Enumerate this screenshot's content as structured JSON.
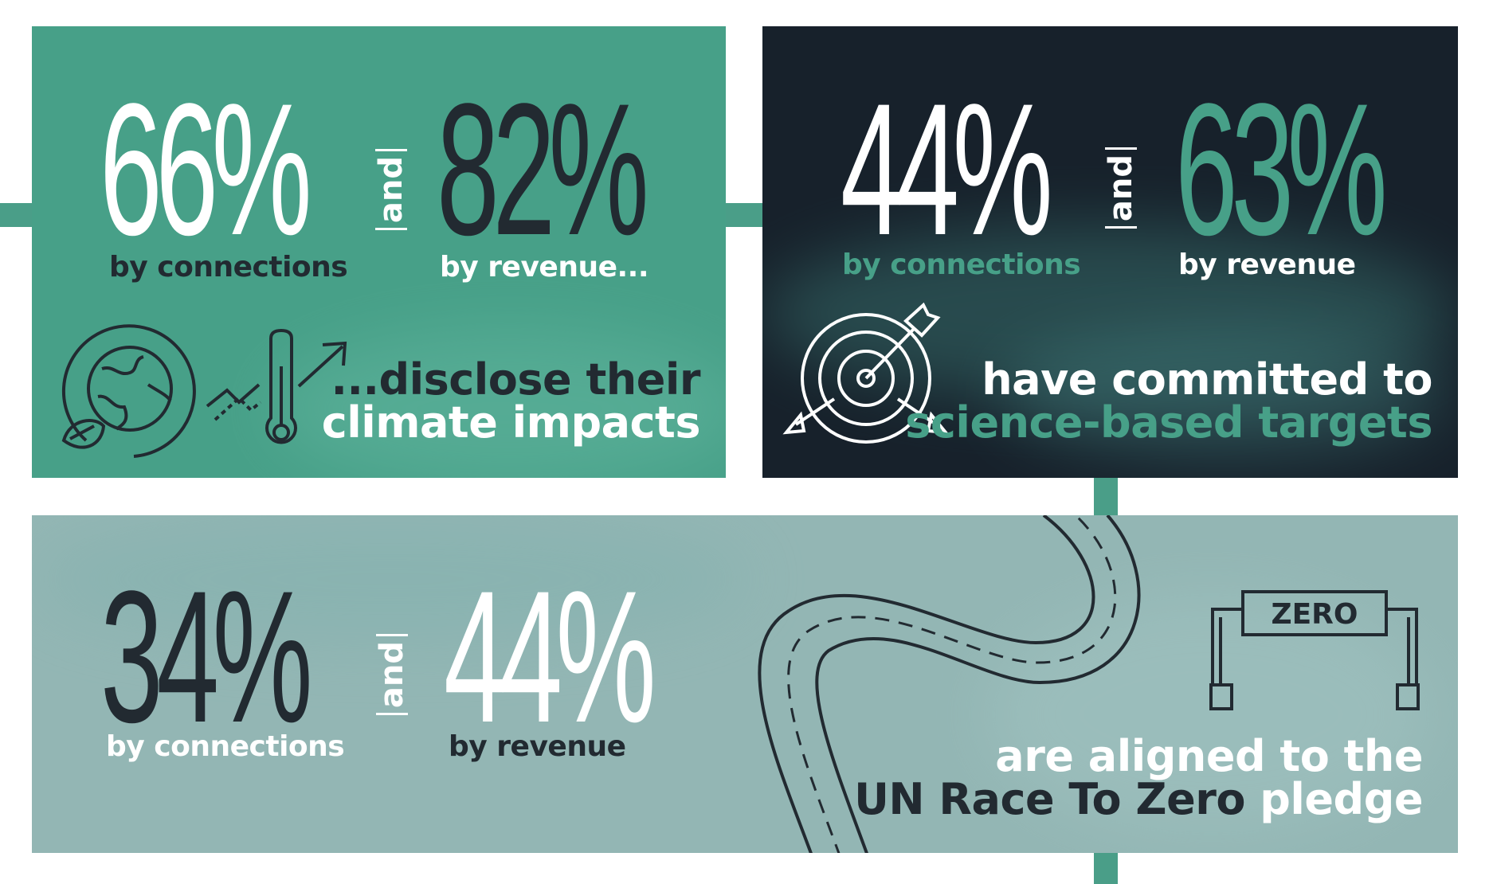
{
  "panel1": {
    "stat1_value": "66%",
    "stat1_label": "by connections",
    "joiner": "and",
    "stat2_value": "82%",
    "stat2_label": "by revenue...",
    "headline_line1": "...disclose their",
    "headline_line2": "climate impacts",
    "icons": [
      "earth-leaf-icon",
      "thermometer-rising-icon"
    ]
  },
  "panel2": {
    "stat1_value": "44%",
    "stat1_label": "by connections",
    "joiner": "and",
    "stat2_value": "63%",
    "stat2_label": "by revenue",
    "headline_line1": "have committed to",
    "headline_line2": "science-based targets",
    "icons": [
      "target-arrows-icon"
    ]
  },
  "panel3": {
    "stat1_value": "34%",
    "stat1_label": "by connections",
    "joiner": "and",
    "stat2_value": "44%",
    "stat2_label": "by revenue",
    "headline_line1": "are aligned to the",
    "headline_line2_part1": "UN Race To Zero",
    "headline_line2_part2": "pledge",
    "finish_sign": "ZERO",
    "icons": [
      "winding-road-icon",
      "finish-line-sign-icon"
    ]
  },
  "colors": {
    "teal": "#47a088",
    "navy": "#17212b",
    "sage": "#93b6b4",
    "dark_text": "#222a31",
    "white": "#ffffff",
    "connector": "#4a9e88"
  }
}
